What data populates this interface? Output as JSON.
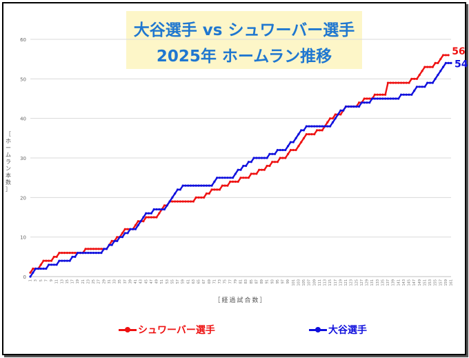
{
  "title": {
    "line1": "大谷選手 vs シュワーバー選手",
    "line2": "2025年 ホームラン推移"
  },
  "colors": {
    "schwarber": "#ee1111",
    "ohtani": "#1010dd",
    "title": "#1f77d0",
    "title_bg": "#fdf6c8"
  },
  "chart_data": {
    "type": "line",
    "xlabel": "［経過試合数］",
    "ylabel": "［ホームラン本数］",
    "xlim": [
      1,
      161
    ],
    "ylim": [
      0,
      60
    ],
    "y_ticks": [
      0,
      10,
      20,
      30,
      40,
      50,
      60
    ],
    "x_ticks": [
      1,
      3,
      5,
      7,
      9,
      11,
      13,
      15,
      17,
      19,
      21,
      23,
      25,
      27,
      29,
      31,
      33,
      35,
      37,
      39,
      41,
      43,
      45,
      47,
      49,
      51,
      53,
      55,
      57,
      59,
      61,
      63,
      65,
      67,
      69,
      71,
      73,
      75,
      77,
      79,
      81,
      83,
      85,
      87,
      89,
      91,
      93,
      95,
      97,
      99,
      101,
      103,
      105,
      107,
      109,
      111,
      113,
      115,
      117,
      119,
      121,
      123,
      125,
      127,
      129,
      131,
      133,
      135,
      137,
      139,
      141,
      143,
      145,
      147,
      149,
      151,
      153,
      155,
      157,
      159,
      161
    ],
    "legend_position": "bottom",
    "grid": {
      "x": false,
      "y": true
    },
    "series": [
      {
        "name": "シュワーバー選手",
        "color": "#ee1111",
        "end_label": "56",
        "steps": [
          [
            1,
            1
          ],
          [
            2,
            2
          ],
          [
            5,
            3
          ],
          [
            6,
            4
          ],
          [
            10,
            5
          ],
          [
            12,
            6
          ],
          [
            22,
            7
          ],
          [
            31,
            8
          ],
          [
            32,
            9
          ],
          [
            34,
            10
          ],
          [
            36,
            11
          ],
          [
            37,
            12
          ],
          [
            41,
            13
          ],
          [
            42,
            14
          ],
          [
            45,
            15
          ],
          [
            50,
            16
          ],
          [
            51,
            17
          ],
          [
            52,
            18
          ],
          [
            54,
            19
          ],
          [
            64,
            20
          ],
          [
            68,
            21
          ],
          [
            70,
            22
          ],
          [
            74,
            23
          ],
          [
            77,
            24
          ],
          [
            81,
            25
          ],
          [
            85,
            26
          ],
          [
            88,
            27
          ],
          [
            91,
            28
          ],
          [
            93,
            29
          ],
          [
            96,
            30
          ],
          [
            99,
            31
          ],
          [
            100,
            32
          ],
          [
            103,
            33
          ],
          [
            104,
            34
          ],
          [
            105,
            35
          ],
          [
            106,
            36
          ],
          [
            110,
            37
          ],
          [
            113,
            38
          ],
          [
            114,
            39
          ],
          [
            115,
            40
          ],
          [
            117,
            41
          ],
          [
            120,
            42
          ],
          [
            121,
            43
          ],
          [
            126,
            44
          ],
          [
            128,
            45
          ],
          [
            132,
            46
          ],
          [
            137,
            49
          ],
          [
            146,
            50
          ],
          [
            149,
            51
          ],
          [
            150,
            52
          ],
          [
            151,
            53
          ],
          [
            155,
            54
          ],
          [
            157,
            55
          ],
          [
            158,
            56
          ]
        ],
        "end_x": 160
      },
      {
        "name": "大谷選手",
        "color": "#1010dd",
        "end_label": "54",
        "steps": [
          [
            1,
            0
          ],
          [
            2,
            1
          ],
          [
            3,
            2
          ],
          [
            8,
            3
          ],
          [
            12,
            4
          ],
          [
            17,
            5
          ],
          [
            19,
            6
          ],
          [
            29,
            7
          ],
          [
            31,
            8
          ],
          [
            33,
            9
          ],
          [
            35,
            10
          ],
          [
            37,
            11
          ],
          [
            39,
            12
          ],
          [
            42,
            13
          ],
          [
            43,
            14
          ],
          [
            44,
            15
          ],
          [
            45,
            16
          ],
          [
            48,
            17
          ],
          [
            53,
            18
          ],
          [
            54,
            19
          ],
          [
            55,
            20
          ],
          [
            56,
            21
          ],
          [
            57,
            22
          ],
          [
            59,
            23
          ],
          [
            71,
            24
          ],
          [
            72,
            25
          ],
          [
            79,
            26
          ],
          [
            80,
            27
          ],
          [
            82,
            28
          ],
          [
            84,
            29
          ],
          [
            86,
            30
          ],
          [
            92,
            31
          ],
          [
            95,
            32
          ],
          [
            99,
            33
          ],
          [
            100,
            34
          ],
          [
            102,
            35
          ],
          [
            103,
            36
          ],
          [
            104,
            37
          ],
          [
            106,
            38
          ],
          [
            116,
            39
          ],
          [
            117,
            40
          ],
          [
            118,
            41
          ],
          [
            119,
            42
          ],
          [
            121,
            43
          ],
          [
            127,
            44
          ],
          [
            131,
            45
          ],
          [
            142,
            46
          ],
          [
            147,
            47
          ],
          [
            148,
            48
          ],
          [
            152,
            49
          ],
          [
            155,
            50
          ],
          [
            156,
            51
          ],
          [
            157,
            52
          ],
          [
            158,
            53
          ],
          [
            159,
            54
          ]
        ],
        "end_x": 161
      }
    ]
  }
}
